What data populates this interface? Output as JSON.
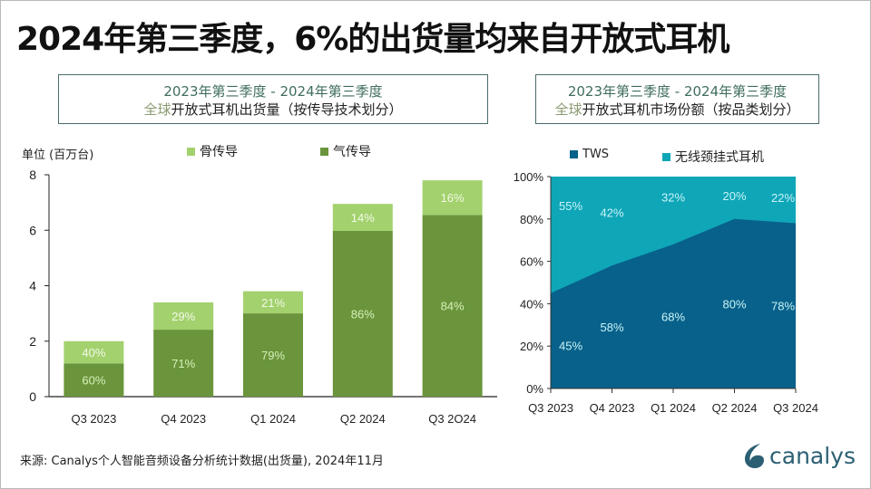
{
  "title": "2024年第三季度，6%的出货量均来自开放式耳机",
  "colors": {
    "air": "#6a953c",
    "bone": "#a3d16e",
    "tws": "#08618a",
    "neckband": "#0fa6b8",
    "bar_label_air": "#d6f0b8",
    "bar_label_bone": "#f1fae6",
    "area_label": "#c8f4f8"
  },
  "left_box": {
    "line1": "2023年第三季度 - 2024年第三季度",
    "line2_prefix": "全球",
    "line2_rest": "开放式耳机出货量（按传导技术划分）"
  },
  "right_box": {
    "line1": "2023年第三季度 -  2024年第三季度",
    "line2_prefix": "全球",
    "line2_rest": "开放式耳机市场份额（按品类划分）"
  },
  "source": "来源: Canalys个人智能音频设备分析统计数据(出货量), 2024年11月",
  "logo": {
    "text": "canalys"
  },
  "chart_data": [
    {
      "type": "bar",
      "stacked": true,
      "title": "",
      "ylabel": "单位 (百万台)",
      "xlabel": "",
      "ylim": [
        0,
        8
      ],
      "yticks": [
        "0",
        "2",
        "4",
        "6",
        "8"
      ],
      "categories": [
        "Q3 2023",
        "Q4 2023",
        "Q1 2024",
        "Q2 2024",
        "Q3 2O24"
      ],
      "totals": [
        2.0,
        3.4,
        3.8,
        6.95,
        7.8
      ],
      "series": [
        {
          "name": "气传导",
          "share_pct": [
            60,
            71,
            79,
            86,
            84
          ],
          "labels": [
            "60%",
            "71%",
            "79%",
            "86%",
            "84%"
          ]
        },
        {
          "name": "骨传导",
          "share_pct": [
            40,
            29,
            21,
            14,
            16
          ],
          "labels": [
            "40%",
            "29%",
            "21%",
            "14%",
            "16%"
          ]
        }
      ],
      "legend": [
        "骨传导",
        "气传导"
      ],
      "legend_position": "top",
      "grid": false
    },
    {
      "type": "area",
      "stacked": true,
      "title": "",
      "xlabel": "",
      "ylabel": "",
      "ylim": [
        0,
        100
      ],
      "yticks": [
        "0%",
        "20%",
        "40%",
        "60%",
        "80%",
        "100%"
      ],
      "categories": [
        "Q3 2023",
        "Q4 2023",
        "Q1 2024",
        "Q2 2024",
        "Q3 2024"
      ],
      "series": [
        {
          "name": "TWS",
          "values": [
            45,
            58,
            68,
            80,
            78
          ],
          "labels": [
            "45%",
            "58%",
            "68%",
            "80%",
            "78%"
          ]
        },
        {
          "name": "无线颈挂式耳机",
          "values": [
            55,
            42,
            32,
            20,
            22
          ],
          "labels": [
            "55%",
            "42%",
            "32%",
            "20%",
            "22%"
          ]
        }
      ],
      "legend": [
        "TWS",
        "无线颈挂式耳机"
      ],
      "legend_position": "top",
      "grid": false
    }
  ]
}
